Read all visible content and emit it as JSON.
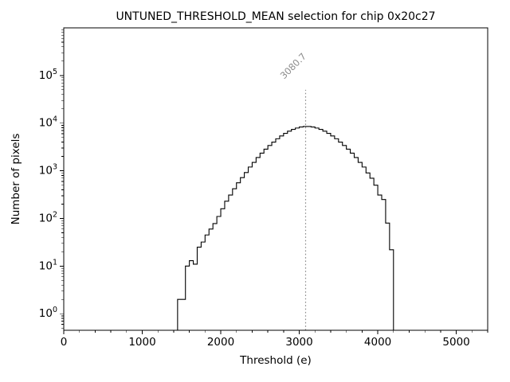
{
  "title": "UNTUNED_THRESHOLD_MEAN selection for chip 0x20c27",
  "chart_data": {
    "type": "bar",
    "subtype": "step-histogram-log-y",
    "title": "UNTUNED_THRESHOLD_MEAN selection for chip 0x20c27",
    "xlabel": "Threshold (e)",
    "ylabel": "Number of pixels",
    "xlim": [
      0,
      5400
    ],
    "ylim_log": [
      0.45,
      1000000
    ],
    "grid": false,
    "legend": null,
    "x_major_ticks": [
      0,
      1000,
      2000,
      3000,
      4000,
      5000
    ],
    "x_minor_step": 200,
    "y_major_tick_exponents": [
      0,
      1,
      2,
      3,
      4,
      5
    ],
    "line_color": "#000000",
    "bin_start": 1450,
    "bin_width": 50,
    "counts": [
      2,
      2,
      10,
      13,
      11,
      25,
      32,
      45,
      60,
      78,
      110,
      160,
      230,
      310,
      420,
      560,
      720,
      920,
      1200,
      1500,
      1900,
      2350,
      2850,
      3400,
      4000,
      4700,
      5400,
      6100,
      6800,
      7400,
      7900,
      8300,
      8500,
      8500,
      8300,
      7900,
      7400,
      6800,
      6100,
      5400,
      4700,
      4000,
      3400,
      2850,
      2350,
      1900,
      1500,
      1200,
      900,
      700,
      500,
      310,
      250,
      80,
      22
    ],
    "vline": {
      "x": 3080.7,
      "label": "3080.7",
      "color": "#8c8c8c",
      "top_value": 50000,
      "style": "dotted"
    }
  }
}
